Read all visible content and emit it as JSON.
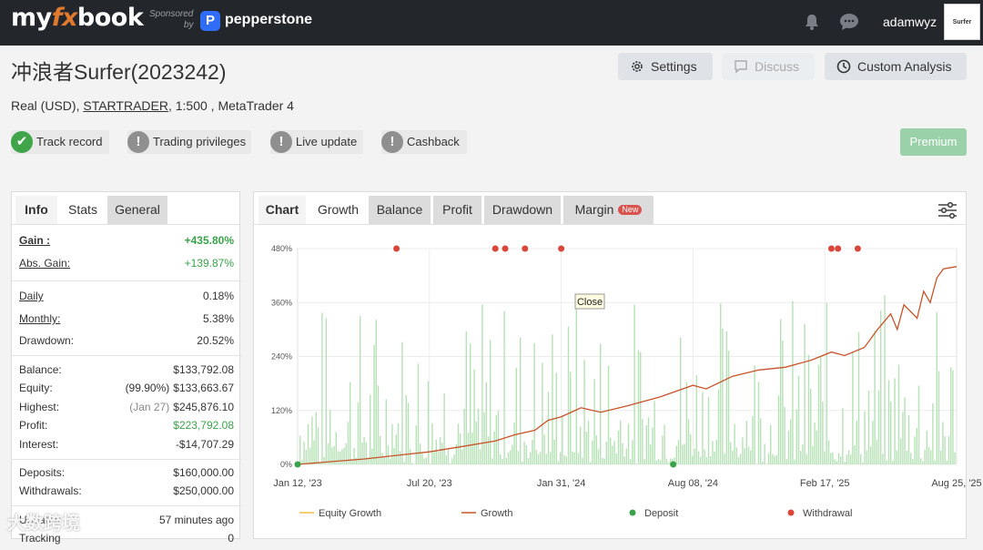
{
  "header": {
    "logo_my": "my",
    "logo_fx": "fx",
    "logo_book": "book",
    "sponsored": "Sponsored",
    "by": "by",
    "sponsor_name": "pepperstone",
    "username": "adamwyz",
    "avatar_text": "Surfer"
  },
  "account": {
    "title": "冲浪者Surfer(2023242)",
    "type": "Real (USD),",
    "broker": "STARTRADER",
    "leverage": ", 1:500 , MetaTrader 4"
  },
  "actions": {
    "settings": "Settings",
    "discuss": "Discuss",
    "custom_analysis": "Custom Analysis",
    "premium": "Premium"
  },
  "badges": {
    "track_record": "Track record",
    "trading_privileges": "Trading privileges",
    "live_update": "Live update",
    "cashback": "Cashback"
  },
  "left_tabs": {
    "info": "Info",
    "stats": "Stats",
    "general": "General"
  },
  "stats": {
    "gain_label": "Gain :",
    "gain": "+435.80%",
    "abs_gain_label": "Abs. Gain:",
    "abs_gain": "+139.87%",
    "daily_label": "Daily",
    "daily": "0.18%",
    "monthly_label": "Monthly:",
    "monthly": "5.38%",
    "drawdown_label": "Drawdown:",
    "drawdown": "20.52%",
    "balance_label": "Balance:",
    "balance": "$133,792.08",
    "equity_label": "Equity:",
    "equity_pct": "(99.90%)",
    "equity": "$133,663.67",
    "highest_label": "Highest:",
    "highest_date": "(Jan 27)",
    "highest": "$245,876.10",
    "profit_label": "Profit:",
    "profit": "$223,792.08",
    "interest_label": "Interest:",
    "interest": "-$14,707.29",
    "deposits_label": "Deposits:",
    "deposits": "$160,000.00",
    "withdrawals_label": "Withdrawals:",
    "withdrawals": "$250,000.00",
    "updated_label": "Updated",
    "updated": "57 minutes ago",
    "tracking_label": "Tracking",
    "tracking": "0"
  },
  "chart_tabs": {
    "chart": "Chart",
    "growth": "Growth",
    "balance": "Balance",
    "profit": "Profit",
    "drawdown": "Drawdown",
    "margin": "Margin",
    "new": "New"
  },
  "watermark": "大数跨境",
  "colors": {
    "growth": "#c8532a",
    "equity": "#f0c040",
    "deposit": "#3aa24a",
    "withdrawal": "#d9463a",
    "bars": "#a9dca9"
  },
  "chart_data": {
    "type": "line",
    "y_ticks": [
      "0%",
      "120%",
      "240%",
      "360%",
      "480%"
    ],
    "ylim": [
      0,
      480
    ],
    "x_ticks": [
      "Jan 12, '23",
      "Jul 20, '23",
      "Jan 31, '24",
      "Aug 08, '24",
      "Feb 17, '25",
      "Aug 25, '25"
    ],
    "tooltip": "Close",
    "legend": [
      "Equity Growth",
      "Growth",
      "Deposit",
      "Withdrawal"
    ],
    "series": [
      {
        "name": "Growth",
        "x": [
          0,
          0.05,
          0.1,
          0.15,
          0.2,
          0.25,
          0.3,
          0.33,
          0.36,
          0.38,
          0.4,
          0.43,
          0.46,
          0.5,
          0.55,
          0.6,
          0.62,
          0.66,
          0.7,
          0.74,
          0.78,
          0.81,
          0.83,
          0.86,
          0.88,
          0.9,
          0.91,
          0.92,
          0.94,
          0.95,
          0.96,
          0.97,
          0.98,
          1.0
        ],
        "values": [
          0,
          6,
          12,
          20,
          28,
          40,
          52,
          66,
          76,
          98,
          106,
          126,
          116,
          130,
          150,
          176,
          168,
          196,
          210,
          216,
          232,
          250,
          242,
          260,
          300,
          335,
          300,
          355,
          325,
          385,
          360,
          415,
          435,
          440
        ]
      }
    ],
    "deposits_x": [
      0.0,
      0.57
    ],
    "withdrawals_x": [
      0.15,
      0.3,
      0.315,
      0.345,
      0.4,
      0.81,
      0.82,
      0.85
    ]
  }
}
